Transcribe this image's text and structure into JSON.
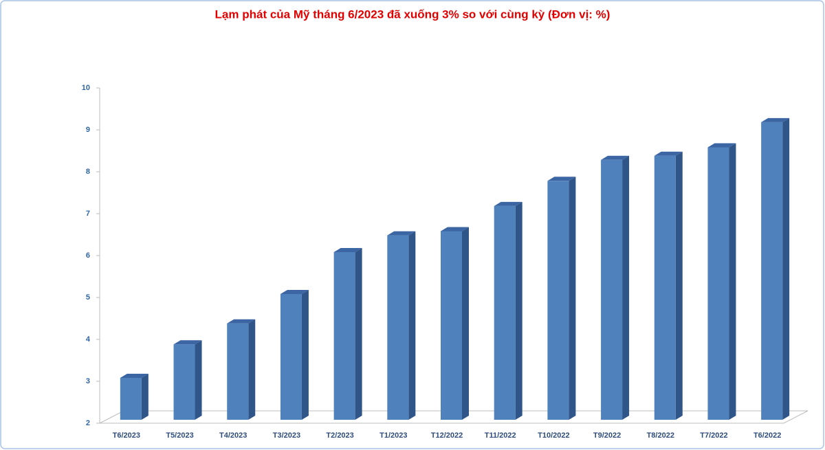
{
  "chart_data": {
    "type": "bar3d",
    "title": "Lạm phát của Mỹ tháng 6/2023 đã xuống 3% so với cùng kỳ (Đơn vị: %)",
    "categories": [
      "T6/2023",
      "T5/2023",
      "T4/2023",
      "T3/2023",
      "T2/2023",
      "T1/2023",
      "T12/2022",
      "T11/2022",
      "T10/2022",
      "T9/2022",
      "T8/2022",
      "T7/2022",
      "T6/2022"
    ],
    "values": [
      3.0,
      3.8,
      4.3,
      5.0,
      6.0,
      6.4,
      6.5,
      7.1,
      7.7,
      8.2,
      8.3,
      8.5,
      9.1
    ],
    "color": "#4f81bd",
    "ylim": [
      2,
      10
    ],
    "yticks": [
      2,
      3,
      4,
      5,
      6,
      7,
      8,
      9,
      10
    ],
    "grid": false
  }
}
